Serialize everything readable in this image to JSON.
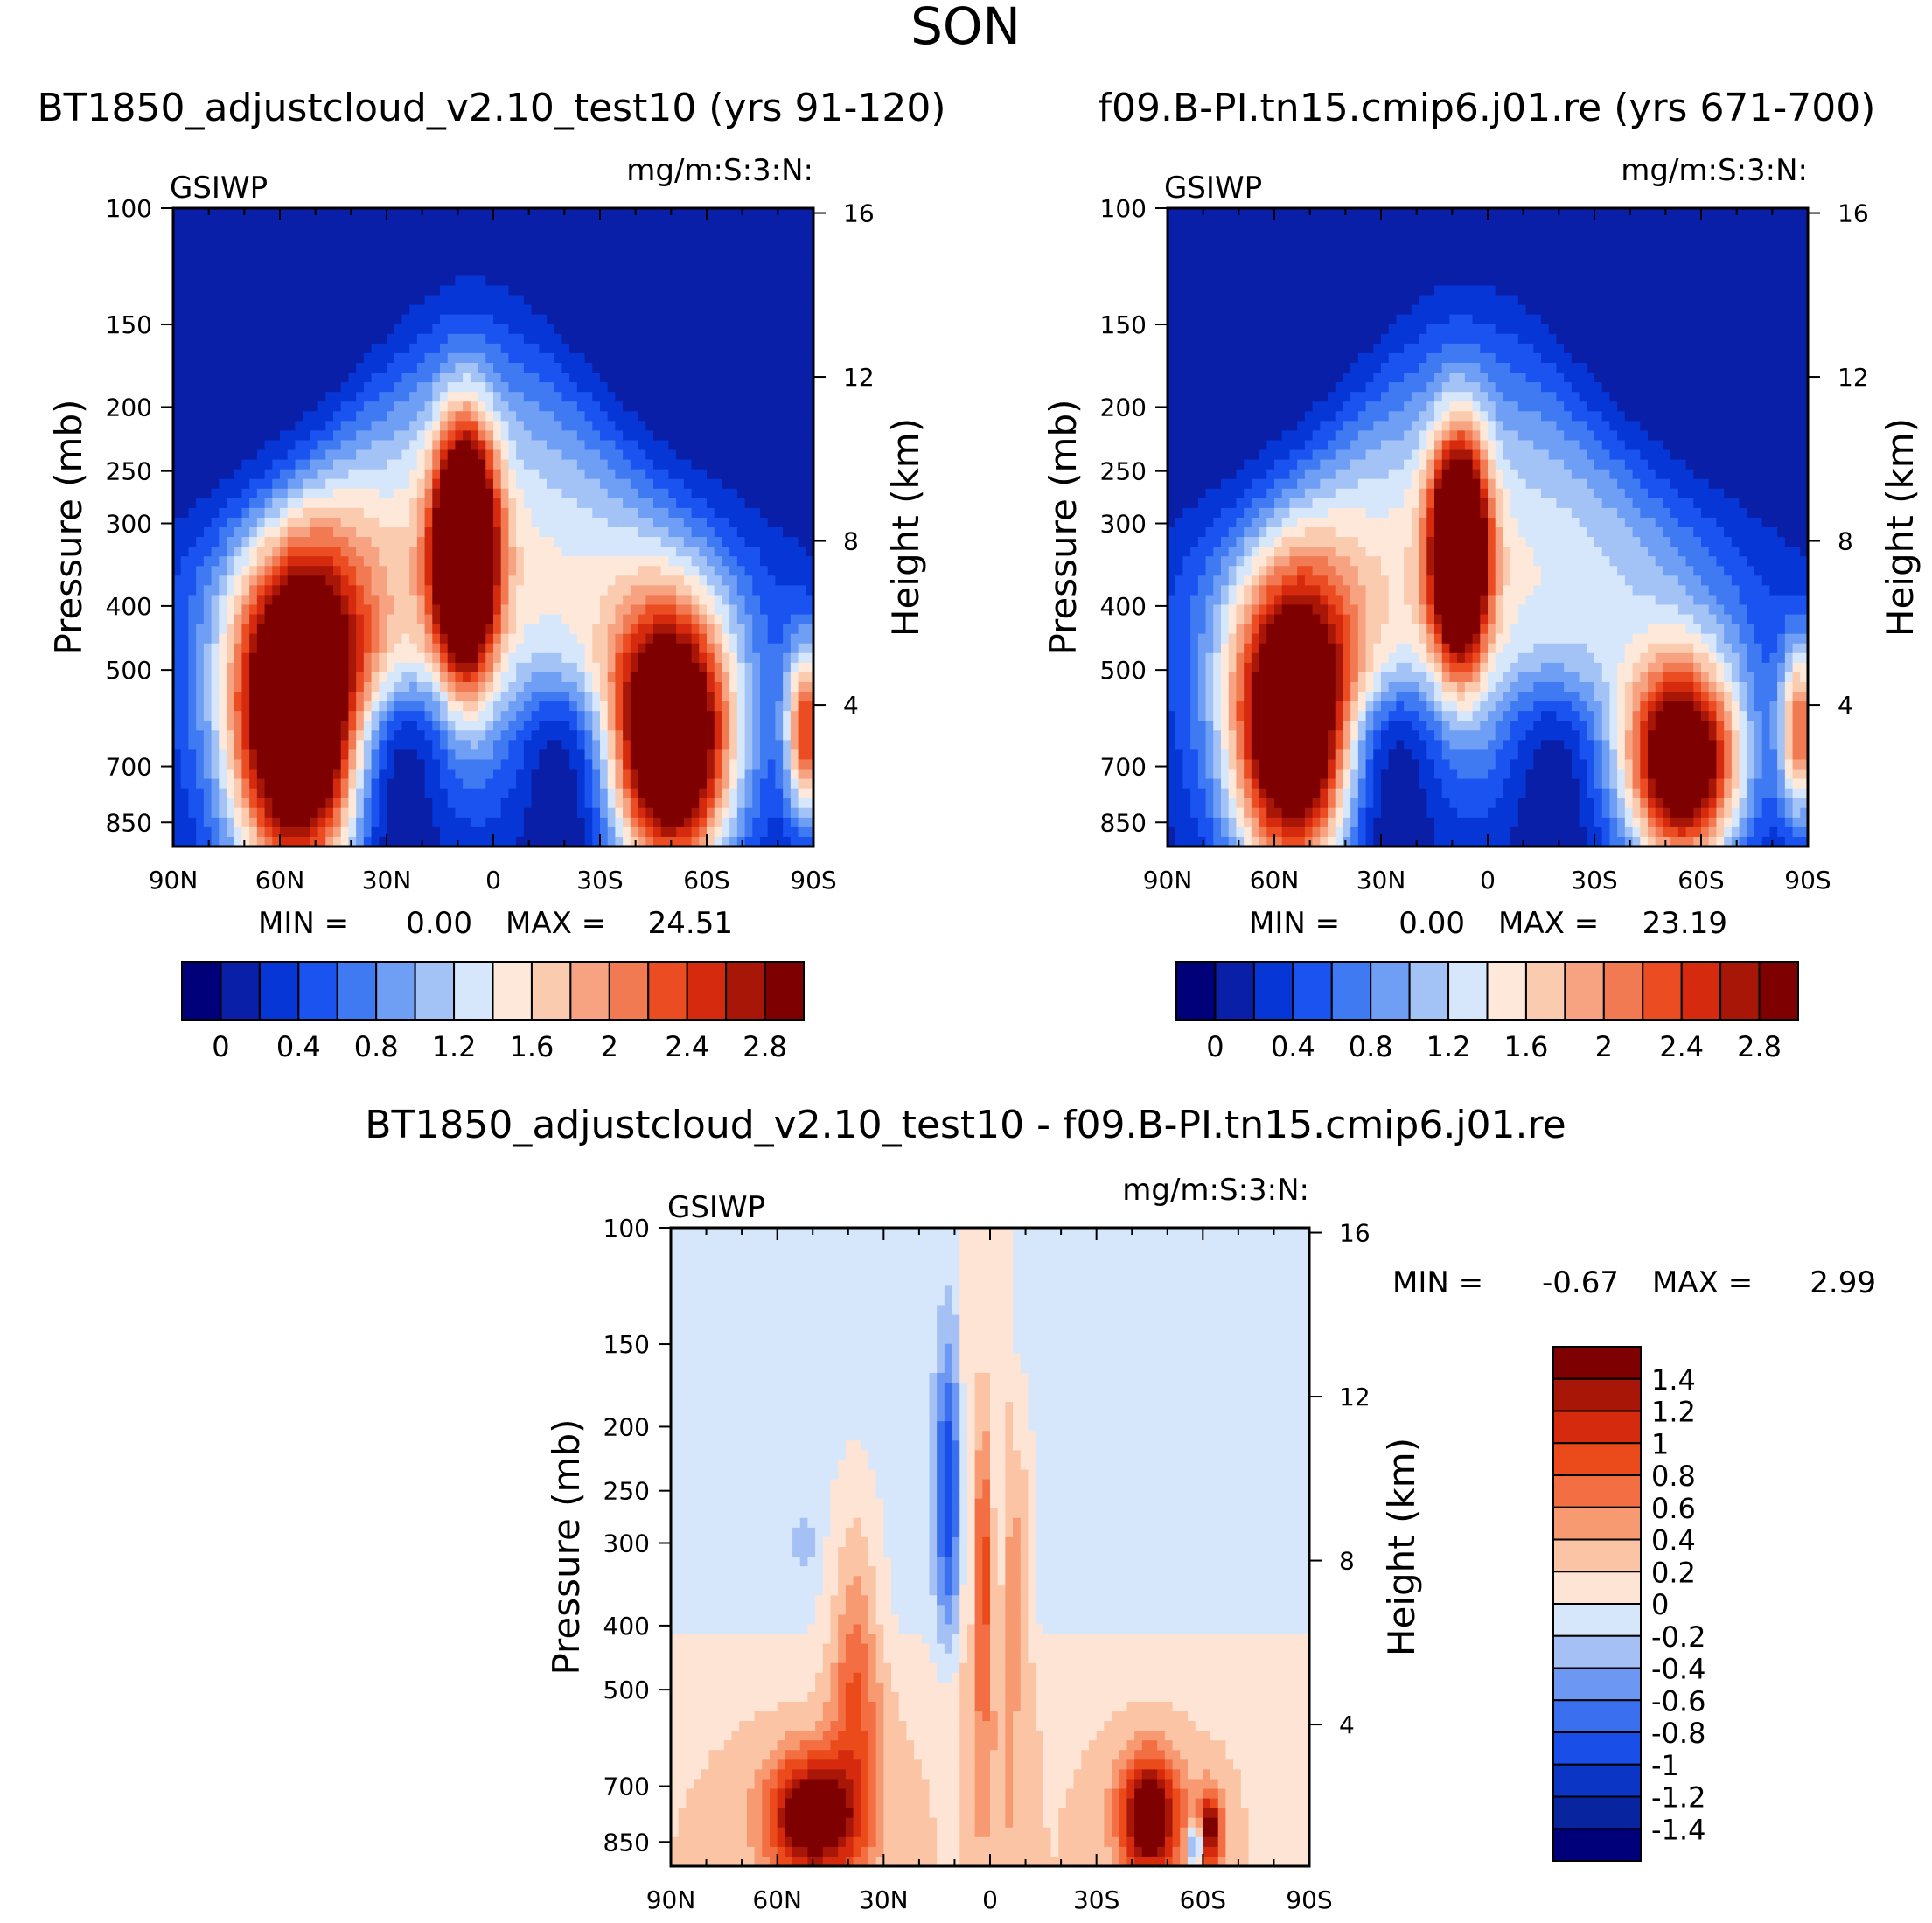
{
  "figure": {
    "title": "SON"
  },
  "colors": {
    "abs_levels": [
      "#00007a",
      "#0a1fa8",
      "#0636d6",
      "#1a53ef",
      "#3f7af2",
      "#6f9ef5",
      "#a3c3f7",
      "#d6e7fb",
      "#fde8da",
      "#fbcbb0",
      "#f7a382",
      "#f27a53",
      "#ec4c22",
      "#d52a0d",
      "#a81608",
      "#7f0000"
    ],
    "diff_levels": [
      "#00007a",
      "#08249f",
      "#0b35c4",
      "#1a4ee8",
      "#3a70f0",
      "#6c98f3",
      "#a4c0f5",
      "#d7e7fb",
      "#fde4d4",
      "#fbc4a5",
      "#f79a72",
      "#f36e43",
      "#eb4a1b",
      "#d52a0d",
      "#a81608",
      "#7f0000"
    ]
  },
  "chart_data": [
    {
      "id": "panel-test10",
      "type": "heatmap",
      "title": "BT1850_adjustcloud_v2.10_test10 (yrs 91-120)",
      "variable_label": "GSIWP",
      "units_label": "mg/m:S:3:N:",
      "xlabel": "",
      "ylabel": "Pressure (mb)",
      "y2label": "Height (km)",
      "x_ticks": [
        "90N",
        "60N",
        "30N",
        "0",
        "30S",
        "60S",
        "90S"
      ],
      "y_ticks": [
        "100",
        "150",
        "200",
        "250",
        "300",
        "400",
        "500",
        "700",
        "850"
      ],
      "y2_ticks": [
        "16",
        "12",
        "8",
        "4"
      ],
      "min_label": "MIN =",
      "min_value": "0.00",
      "max_label": "MAX =",
      "max_value": "24.51",
      "colorbar_ticks": [
        "0",
        "0.4",
        "0.8",
        "1.2",
        "1.6",
        "2",
        "2.4",
        "2.8"
      ],
      "field": {
        "plumes": [
          {
            "lat": 55,
            "p": 600,
            "amp": 3.6,
            "slat": 13,
            "sp": 0.42
          },
          {
            "lat": 8,
            "p": 330,
            "amp": 3.8,
            "slat": 6,
            "sp": 0.3
          },
          {
            "lat": -50,
            "p": 650,
            "amp": 3.5,
            "slat": 12,
            "sp": 0.33
          },
          {
            "lat": -88,
            "p": 620,
            "amp": 2.2,
            "slat": 4,
            "sp": 0.22
          }
        ],
        "envelope": {
          "amp": 1.25,
          "slat": 42,
          "p_center": 330,
          "sp": 0.55
        },
        "tropopause": {
          "low_p": 310,
          "high_p": 120,
          "width": 35
        }
      }
    },
    {
      "id": "panel-cmip6",
      "type": "heatmap",
      "title": "f09.B-PI.tn15.cmip6.j01.re (yrs 671-700)",
      "variable_label": "GSIWP",
      "units_label": "mg/m:S:3:N:",
      "xlabel": "",
      "ylabel": "Pressure (mb)",
      "y2label": "Height (km)",
      "x_ticks": [
        "90N",
        "60N",
        "30N",
        "0",
        "30S",
        "60S",
        "90S"
      ],
      "y_ticks": [
        "100",
        "150",
        "200",
        "250",
        "300",
        "400",
        "500",
        "700",
        "850"
      ],
      "y2_ticks": [
        "16",
        "12",
        "8",
        "4"
      ],
      "min_label": "MIN =",
      "min_value": "0.00",
      "max_label": "MAX =",
      "max_value": "23.19",
      "colorbar_ticks": [
        "0",
        "0.4",
        "0.8",
        "1.2",
        "1.6",
        "2",
        "2.4",
        "2.8"
      ],
      "field": {
        "plumes": [
          {
            "lat": 55,
            "p": 620,
            "amp": 3.3,
            "slat": 12,
            "sp": 0.38
          },
          {
            "lat": 8,
            "p": 330,
            "amp": 3.4,
            "slat": 5.5,
            "sp": 0.28
          },
          {
            "lat": -55,
            "p": 700,
            "amp": 3.2,
            "slat": 11,
            "sp": 0.25
          },
          {
            "lat": -88,
            "p": 620,
            "amp": 2.0,
            "slat": 4,
            "sp": 0.22
          }
        ],
        "envelope": {
          "amp": 1.2,
          "slat": 42,
          "p_center": 330,
          "sp": 0.55
        },
        "tropopause": {
          "low_p": 310,
          "high_p": 120,
          "width": 35
        }
      }
    },
    {
      "id": "panel-diff",
      "type": "heatmap",
      "title": "BT1850_adjustcloud_v2.10_test10 - f09.B-PI.tn15.cmip6.j01.re",
      "variable_label": "GSIWP",
      "units_label": "mg/m:S:3:N:",
      "xlabel": "",
      "ylabel": "Pressure (mb)",
      "y2label": "Height (km)",
      "x_ticks": [
        "90N",
        "60N",
        "30N",
        "0",
        "30S",
        "60S",
        "90S"
      ],
      "y_ticks": [
        "100",
        "150",
        "200",
        "250",
        "300",
        "400",
        "500",
        "700",
        "850"
      ],
      "y2_ticks": [
        "16",
        "12",
        "8",
        "4"
      ],
      "min_label": "MIN =",
      "min_value": "-0.67",
      "max_label": "MAX =",
      "max_value": "2.99",
      "colorbar_ticks": [
        "1.4",
        "1.2",
        "1",
        "0.8",
        "0.6",
        "0.4",
        "0.2",
        "0",
        "-0.2",
        "-0.4",
        "-0.6",
        "-0.8",
        "-1",
        "-1.2",
        "-1.4"
      ],
      "field": {
        "blobs": [
          {
            "lat": 50,
            "p": 780,
            "amp": 1.7,
            "slat": 9,
            "sp": 0.15
          },
          {
            "lat": 38,
            "p": 480,
            "amp": 0.7,
            "slat": 5,
            "sp": 0.4
          },
          {
            "lat": -45,
            "p": 780,
            "amp": 1.7,
            "slat": 6,
            "sp": 0.15
          },
          {
            "lat": -62,
            "p": 820,
            "amp": 1.4,
            "slat": 2.5,
            "sp": 0.1
          },
          {
            "lat": -58,
            "p": 860,
            "amp": -1.2,
            "slat": 1.5,
            "sp": 0.06
          },
          {
            "lat": 12,
            "p": 250,
            "amp": -0.9,
            "slat": 2.5,
            "sp": 0.35
          },
          {
            "lat": 2,
            "p": 330,
            "amp": 0.9,
            "slat": 1.5,
            "sp": 0.35
          },
          {
            "lat": -8,
            "p": 330,
            "amp": 0.55,
            "slat": 2.5,
            "sp": 0.38
          },
          {
            "lat": 52,
            "p": 300,
            "amp": -0.25,
            "slat": 2.5,
            "sp": 0.07
          }
        ],
        "background": -0.08,
        "lowband": {
          "amp": 0.28,
          "p_low": 450,
          "width": 0.25
        },
        "equatorial_strip": {
          "lat_min": -7,
          "lat_max": 8,
          "amp": 0.18
        }
      }
    }
  ]
}
